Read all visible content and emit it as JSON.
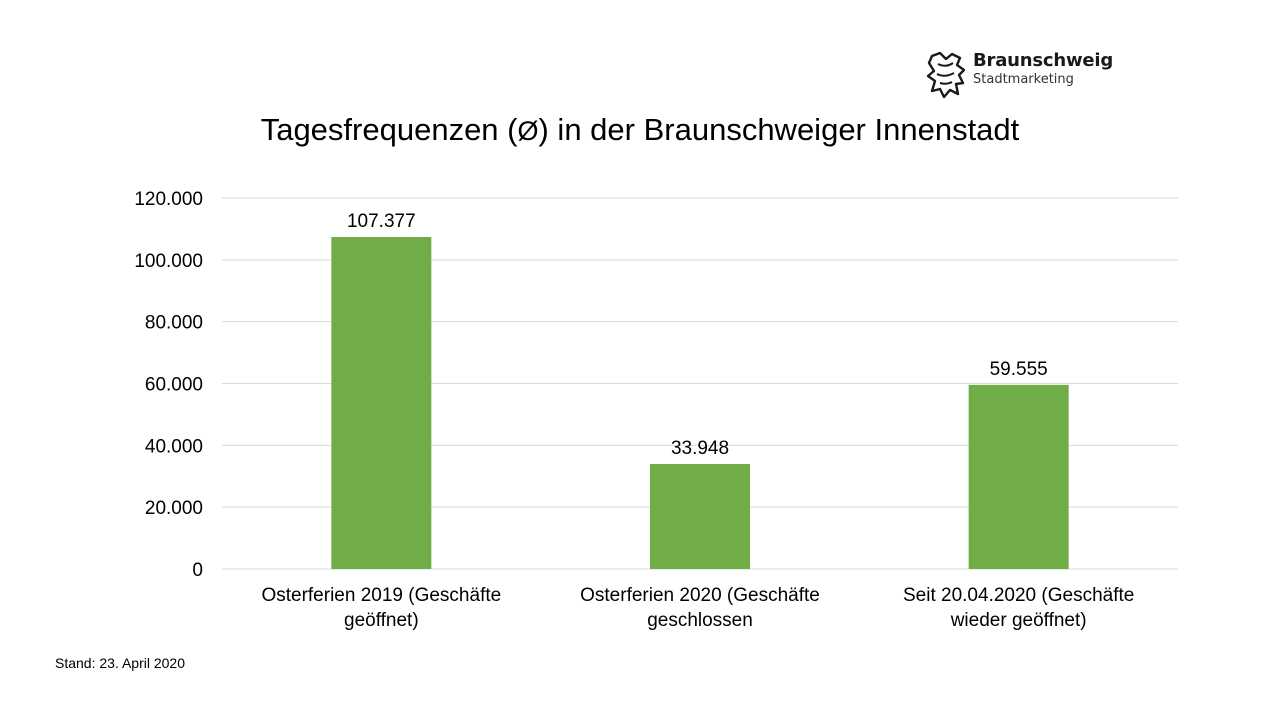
{
  "logo": {
    "name": "Braunschweig",
    "sub": "Stadtmarketing"
  },
  "title": {
    "before": "Tagesfrequenzen (",
    "symbol": "Ø",
    "after": ") in der Braunschweiger Innenstadt"
  },
  "footnote": "Stand: 23. April 2020",
  "colors": {
    "bar": "#70ad47",
    "grid": "#d9d9d9",
    "axis": "#d9d9d9"
  },
  "chart_data": {
    "type": "bar",
    "title": "Tagesfrequenzen (Ø) in der Braunschweiger Innenstadt",
    "categories": [
      [
        "Osterferien 2019 (Geschäfte",
        "geöffnet)"
      ],
      [
        "Osterferien 2020 (Geschäfte",
        "geschlossen"
      ],
      [
        "Seit 20.04.2020 (Geschäfte",
        "wieder geöffnet)"
      ]
    ],
    "values": [
      107377,
      33948,
      59555
    ],
    "data_labels": [
      "107.377",
      "33.948",
      "59.555"
    ],
    "ylim": [
      0,
      120000
    ],
    "yticks": [
      0,
      20000,
      40000,
      60000,
      80000,
      100000,
      120000
    ],
    "ytick_labels": [
      "0",
      "20.000",
      "40.000",
      "60.000",
      "80.000",
      "100.000",
      "120.000"
    ],
    "grid": true,
    "legend": "none"
  }
}
